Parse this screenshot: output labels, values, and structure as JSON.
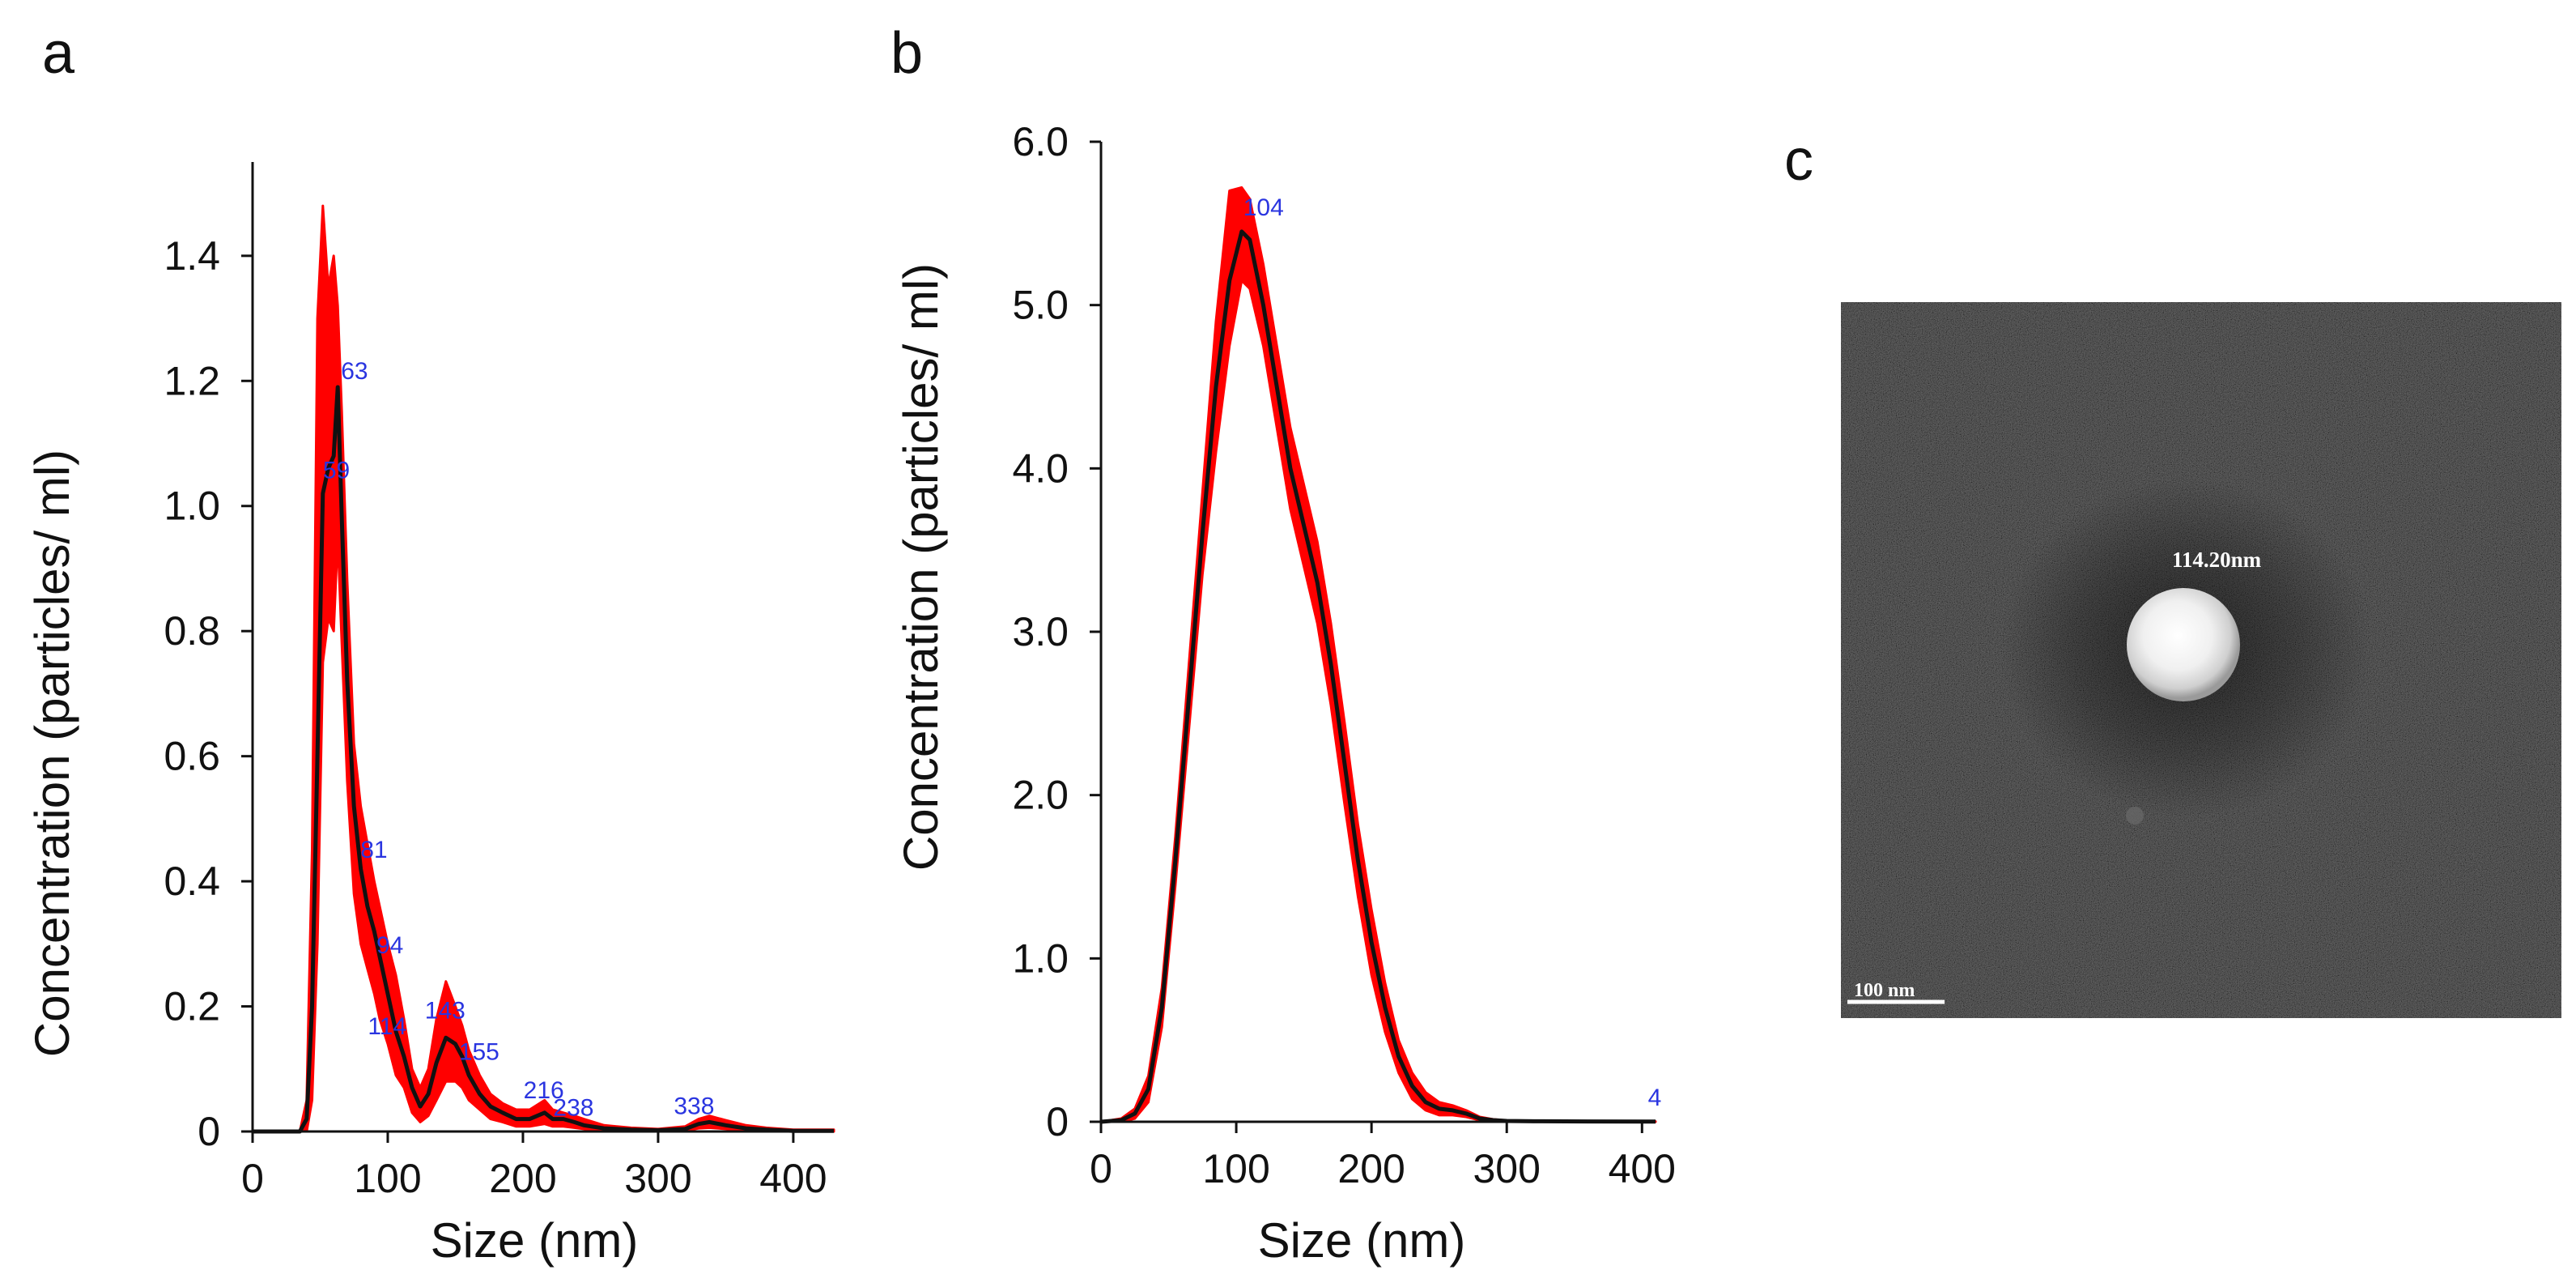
{
  "panel_letters": [
    "a",
    "b",
    "c"
  ],
  "colors": {
    "mean_line": "#111111",
    "error_band": "#ff0000",
    "peak_label": "#2a35e0",
    "axis": "#111111",
    "micrograph_bg": "#242424"
  },
  "chart_data": [
    {
      "panel": "a",
      "type": "line",
      "title": "",
      "xlabel": "Size (nm)",
      "ylabel": "Concentration (particles/ ml)",
      "xlim": [
        0,
        430
      ],
      "ylim": [
        0,
        1.55
      ],
      "xticks": [
        0,
        100,
        200,
        300,
        400
      ],
      "yticks": [
        0,
        0.2,
        0.4,
        0.6,
        0.8,
        1.0,
        1.2,
        1.4
      ],
      "ytick_labels": [
        "0",
        "0.2",
        "0.4",
        "0.6",
        "0.8",
        "1.0",
        "1.2",
        "1.4"
      ],
      "series": [
        {
          "name": "mean",
          "x": [
            0,
            35,
            40,
            44,
            48,
            52,
            56,
            60,
            63,
            66,
            70,
            75,
            80,
            85,
            90,
            94,
            100,
            106,
            112,
            118,
            124,
            130,
            136,
            143,
            150,
            155,
            160,
            168,
            176,
            185,
            195,
            205,
            216,
            222,
            230,
            238,
            245,
            260,
            280,
            300,
            320,
            330,
            338,
            350,
            365,
            380,
            400,
            430
          ],
          "y": [
            0,
            0,
            0.02,
            0.2,
            0.6,
            1.02,
            1.06,
            1.08,
            1.19,
            0.98,
            0.72,
            0.52,
            0.42,
            0.36,
            0.32,
            0.28,
            0.22,
            0.16,
            0.12,
            0.07,
            0.04,
            0.06,
            0.11,
            0.15,
            0.14,
            0.12,
            0.09,
            0.06,
            0.04,
            0.03,
            0.02,
            0.02,
            0.03,
            0.02,
            0.02,
            0.015,
            0.01,
            0.005,
            0.003,
            0.002,
            0.004,
            0.012,
            0.015,
            0.01,
            0.005,
            0.003,
            0.001,
            0.001
          ]
        },
        {
          "name": "error band (upper)",
          "y": [
            0,
            0,
            0.05,
            0.45,
            1.3,
            1.48,
            1.35,
            1.4,
            1.32,
            1.15,
            0.88,
            0.62,
            0.52,
            0.46,
            0.4,
            0.36,
            0.3,
            0.25,
            0.18,
            0.1,
            0.07,
            0.1,
            0.18,
            0.24,
            0.2,
            0.17,
            0.13,
            0.09,
            0.06,
            0.045,
            0.035,
            0.035,
            0.05,
            0.035,
            0.03,
            0.025,
            0.02,
            0.01,
            0.006,
            0.004,
            0.008,
            0.02,
            0.025,
            0.018,
            0.01,
            0.006,
            0.003,
            0.003
          ]
        },
        {
          "name": "error band (lower)",
          "y": [
            0,
            0,
            0,
            0.05,
            0.3,
            0.75,
            0.82,
            0.8,
            0.95,
            0.78,
            0.56,
            0.38,
            0.3,
            0.26,
            0.22,
            0.18,
            0.14,
            0.09,
            0.07,
            0.03,
            0.015,
            0.025,
            0.05,
            0.08,
            0.08,
            0.07,
            0.05,
            0.035,
            0.02,
            0.015,
            0.008,
            0.008,
            0.012,
            0.008,
            0.008,
            0.006,
            0.004,
            0.001,
            0,
            0,
            0.001,
            0.005,
            0.006,
            0.004,
            0.002,
            0.001,
            0,
            0
          ]
        }
      ],
      "annotations": [
        {
          "text": "63",
          "x": 63,
          "y": 1.19
        },
        {
          "text": "59",
          "x": 58,
          "y": 1.07
        },
        {
          "text": "81",
          "x": 81,
          "y": 0.43
        },
        {
          "text": "94",
          "x": 94,
          "y": 0.28
        },
        {
          "text": "114",
          "x": 114,
          "y": 0.14
        },
        {
          "text": "143",
          "x": 143,
          "y": 0.17
        },
        {
          "text": "155",
          "x": 155,
          "y": 0.13
        },
        {
          "text": "216",
          "x": 216,
          "y": 0.04
        },
        {
          "text": "238",
          "x": 238,
          "y": 0.025
        },
        {
          "text": "338",
          "x": 338,
          "y": 0.02
        }
      ]
    },
    {
      "panel": "b",
      "type": "line",
      "title": "",
      "xlabel": "Size (nm)",
      "ylabel": "Concentration (particles/ ml)",
      "xlim": [
        0,
        410
      ],
      "ylim": [
        0,
        6.0
      ],
      "xticks": [
        0,
        100,
        200,
        300,
        400
      ],
      "yticks": [
        0,
        1.0,
        2.0,
        3.0,
        4.0,
        5.0,
        6.0
      ],
      "ytick_labels": [
        "0",
        "1.0",
        "2.0",
        "3.0",
        "4.0",
        "5.0",
        "6.0"
      ],
      "series": [
        {
          "name": "mean",
          "x": [
            0,
            15,
            25,
            35,
            45,
            55,
            65,
            75,
            85,
            95,
            104,
            110,
            120,
            130,
            140,
            150,
            160,
            170,
            180,
            190,
            200,
            210,
            220,
            230,
            240,
            250,
            260,
            270,
            280,
            290,
            300,
            320,
            360,
            410
          ],
          "y": [
            0,
            0.01,
            0.05,
            0.2,
            0.7,
            1.6,
            2.6,
            3.6,
            4.5,
            5.15,
            5.45,
            5.4,
            5.0,
            4.5,
            4.0,
            3.65,
            3.3,
            2.8,
            2.2,
            1.6,
            1.1,
            0.7,
            0.4,
            0.22,
            0.12,
            0.08,
            0.07,
            0.05,
            0.02,
            0.01,
            0.005,
            0.003,
            0.002,
            0.001
          ]
        },
        {
          "name": "error band (upper)",
          "y": [
            0,
            0.02,
            0.08,
            0.28,
            0.82,
            1.75,
            2.8,
            3.85,
            4.9,
            5.7,
            5.72,
            5.65,
            5.25,
            4.75,
            4.25,
            3.9,
            3.55,
            3.05,
            2.45,
            1.82,
            1.3,
            0.85,
            0.5,
            0.3,
            0.18,
            0.12,
            0.1,
            0.07,
            0.03,
            0.015,
            0.008,
            0.005,
            0.003,
            0.002
          ]
        },
        {
          "name": "error band (lower)",
          "y": [
            0,
            0,
            0.02,
            0.12,
            0.58,
            1.45,
            2.4,
            3.35,
            4.1,
            4.75,
            5.15,
            5.1,
            4.75,
            4.25,
            3.75,
            3.4,
            3.05,
            2.55,
            1.95,
            1.38,
            0.9,
            0.55,
            0.3,
            0.14,
            0.07,
            0.04,
            0.04,
            0.03,
            0.01,
            0.005,
            0.002,
            0.001,
            0.001,
            0
          ]
        }
      ],
      "annotations": [
        {
          "text": "104",
          "x": 104,
          "y": 5.45
        },
        {
          "text": "4",
          "x": 408,
          "y": 0.05
        }
      ]
    }
  ],
  "micrograph": {
    "panel": "c",
    "particle_label": "114.20nm",
    "scale_bar_label": "100 nm"
  }
}
